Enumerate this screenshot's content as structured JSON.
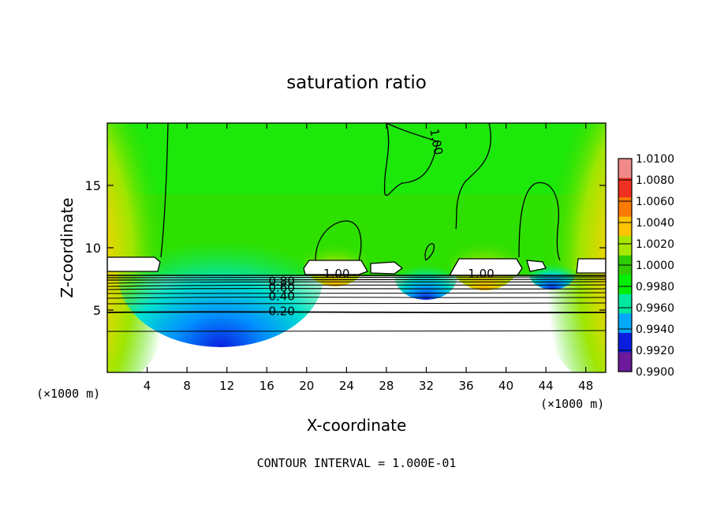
{
  "chart_data": {
    "type": "heatmap",
    "title": "saturation ratio",
    "xlabel": "X-coordinate",
    "ylabel": "Z-coordinate",
    "x_unit": "(×1000 m)",
    "xlim": [
      0,
      50
    ],
    "ylim": [
      0,
      20
    ],
    "x_ticks": [
      4,
      8,
      12,
      16,
      20,
      24,
      28,
      32,
      36,
      40,
      44,
      48
    ],
    "y_ticks": [
      5,
      10,
      15
    ],
    "footer": "CONTOUR INTERVAL = 1.000E-01",
    "colorbar": {
      "levels": [
        "1.0100",
        "1.0080",
        "1.0060",
        "1.0040",
        "1.0020",
        "1.0000",
        "0.9980",
        "0.9960",
        "0.9940",
        "0.9920",
        "0.9900"
      ],
      "colors": [
        "#f08a8a",
        "#f03020",
        "#ff7a00",
        "#ffc400",
        "#a8e800",
        "#2fcc00",
        "#00ee00",
        "#00e8a0",
        "#00a8ff",
        "#0a1ee0",
        "#6a1a9a"
      ]
    },
    "contour_labels": [
      {
        "text": "1.00",
        "x": 33.0,
        "z": 18.5
      },
      {
        "text": "1.00",
        "x": 23.0,
        "z": 7.9
      },
      {
        "text": "1.00",
        "x": 37.5,
        "z": 7.9
      },
      {
        "text": "0.80",
        "x": 17.5,
        "z": 7.3
      },
      {
        "text": "0.60",
        "x": 17.5,
        "z": 6.8
      },
      {
        "text": "0.40",
        "x": 17.5,
        "z": 6.1
      },
      {
        "text": "0.20",
        "x": 17.5,
        "z": 4.9
      }
    ]
  }
}
